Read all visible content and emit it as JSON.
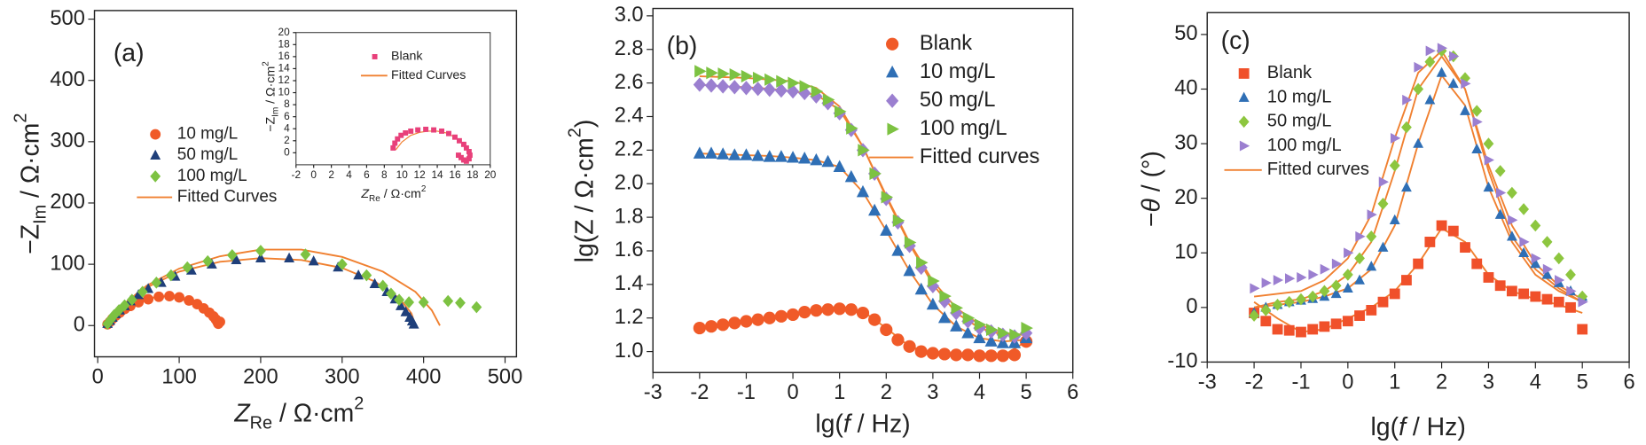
{
  "chart_data": [
    {
      "type": "scatter",
      "title": "(a)",
      "xlabel": [
        "Z",
        "Re",
        " / Ω·cm",
        "2"
      ],
      "ylabel": [
        "−Z",
        "Im",
        " / Ω·cm",
        "2"
      ],
      "xlim": [
        -4,
        514
      ],
      "ylim": [
        -51,
        514
      ],
      "xticks": [
        0,
        100,
        200,
        300,
        400,
        500
      ],
      "yticks": [
        0,
        100,
        200,
        300,
        400,
        500
      ],
      "series": [
        {
          "name": "10 mg/L",
          "color": "#f05a28",
          "marker": "circle",
          "x": [
            12,
            15,
            18,
            22,
            27,
            33,
            40,
            50,
            62,
            75,
            88,
            100,
            112,
            122,
            130,
            137,
            142,
            145,
            147,
            148,
            150
          ],
          "values": [
            2,
            6,
            11,
            16,
            21,
            27,
            32,
            38,
            43,
            47,
            48,
            46,
            41,
            35,
            28,
            21,
            15,
            10,
            6,
            3,
            6
          ]
        },
        {
          "name": "50 mg/L",
          "color": "#1f3f7a",
          "marker": "triangle",
          "x": [
            12,
            15,
            18,
            22,
            27,
            33,
            40,
            50,
            62,
            78,
            95,
            115,
            140,
            170,
            200,
            235,
            265,
            295,
            320,
            340,
            355,
            365,
            372,
            378,
            383,
            386,
            388
          ],
          "values": [
            3,
            8,
            13,
            19,
            25,
            32,
            40,
            50,
            60,
            70,
            80,
            90,
            100,
            107,
            110,
            110,
            105,
            95,
            82,
            68,
            55,
            43,
            32,
            22,
            13,
            7,
            2
          ]
        },
        {
          "name": "100 mg/L",
          "color": "#7dc242",
          "marker": "diamond",
          "x": [
            12,
            16,
            20,
            26,
            33,
            42,
            55,
            72,
            90,
            110,
            135,
            165,
            200,
            255,
            300,
            330,
            350,
            360,
            370,
            382,
            400,
            430,
            445,
            465
          ],
          "values": [
            3,
            10,
            17,
            25,
            33,
            42,
            55,
            70,
            82,
            95,
            105,
            115,
            122,
            116,
            100,
            82,
            65,
            52,
            42,
            38,
            38,
            40,
            37,
            30
          ]
        }
      ],
      "fits": {
        "name": "Fitted Curves",
        "color": "#f08030",
        "curves": [
          {
            "x": [
              10,
              15,
              25,
              40,
              60,
              80,
              100,
              115,
              128,
              138,
              145,
              148
            ],
            "values": [
              0,
              10,
              22,
              34,
              44,
              48,
              45,
              37,
              27,
              16,
              7,
              0
            ]
          },
          {
            "x": [
              10,
              30,
              60,
              100,
              150,
              200,
              250,
              300,
              340,
              370,
              385,
              390
            ],
            "values": [
              0,
              32,
              62,
              88,
              104,
              110,
              107,
              94,
              72,
              45,
              20,
              0
            ]
          },
          {
            "x": [
              10,
              30,
              60,
              100,
              150,
              200,
              250,
              300,
              350,
              390,
              410,
              420
            ],
            "values": [
              0,
              33,
              65,
              93,
              113,
              124,
              124,
              112,
              88,
              55,
              25,
              0
            ]
          }
        ]
      }
    },
    {
      "type": "scatter",
      "xlabel": [
        "Z",
        "Re",
        " / Ω·cm",
        "2"
      ],
      "ylabel": [
        "−Z",
        "Im",
        " / Ω·cm",
        "2"
      ],
      "xlim": [
        -2,
        20
      ],
      "ylim": [
        -2,
        20
      ],
      "xticks": [
        -2,
        0,
        2,
        4,
        6,
        8,
        10,
        12,
        14,
        16,
        18,
        20
      ],
      "yticks": [
        0,
        2,
        4,
        6,
        8,
        10,
        12,
        14,
        16,
        18,
        20
      ],
      "series": [
        {
          "name": "Blank",
          "color": "#e8407a",
          "marker": "square",
          "x": [
            9.0,
            9.2,
            9.5,
            9.9,
            10.4,
            11.0,
            11.8,
            12.7,
            13.6,
            14.5,
            15.3,
            16.0,
            16.5,
            17.0,
            17.3,
            17.6,
            17.7,
            17.6,
            17.3,
            17.0,
            16.7,
            16.4
          ],
          "values": [
            0.8,
            1.6,
            2.3,
            2.9,
            3.3,
            3.6,
            3.8,
            3.9,
            3.8,
            3.6,
            3.2,
            2.6,
            2.0,
            1.4,
            0.8,
            0.2,
            -0.4,
            -1.0,
            -1.4,
            -1.2,
            -0.8,
            -0.4
          ]
        }
      ],
      "fits": {
        "name": "Fitted Curves",
        "color": "#f08030",
        "curves": [
          {
            "x": [
              9.3,
              10,
              11,
              12,
              13,
              14,
              15,
              16,
              16.8,
              17.4,
              17.7
            ],
            "values": [
              0.5,
              1.8,
              2.9,
              3.4,
              3.6,
              3.6,
              3.3,
              2.6,
              1.6,
              0.5,
              -0.5
            ]
          }
        ]
      }
    },
    {
      "type": "scatter",
      "title": "(b)",
      "xlabel": [
        "lg(",
        "f",
        " / Hz)"
      ],
      "ylabel": [
        "lg(Z / Ω·cm",
        "2",
        ")"
      ],
      "xlim": [
        -3,
        6
      ],
      "ylim": [
        0.875,
        3.044
      ],
      "xticks": [
        -3,
        -2,
        -1,
        0,
        1,
        2,
        3,
        4,
        5,
        6
      ],
      "yticks": [
        {
          "value": 1.0,
          "label": "1.0"
        },
        {
          "value": 1.2,
          "label": "1.2"
        },
        {
          "value": 1.4,
          "label": "1.4"
        },
        {
          "value": 1.6,
          "label": "1.6"
        },
        {
          "value": 1.8,
          "label": "1.8"
        },
        {
          "value": 2.0,
          "label": "2.0"
        },
        {
          "value": 2.2,
          "label": "2.2"
        },
        {
          "value": 2.4,
          "label": "2.4"
        },
        {
          "value": 2.6,
          "label": "2.6"
        },
        {
          "value": 2.8,
          "label": "2.8"
        },
        {
          "value": 3.0,
          "label": "3.0"
        }
      ],
      "x": [
        -2,
        -1.75,
        -1.5,
        -1.25,
        -1,
        -0.75,
        -0.5,
        -0.25,
        0,
        0.25,
        0.5,
        0.75,
        1,
        1.25,
        1.5,
        1.75,
        2,
        2.25,
        2.5,
        2.75,
        3,
        3.25,
        3.5,
        3.75,
        4,
        4.25,
        4.5,
        4.75,
        5
      ],
      "series": [
        {
          "name": "Blank",
          "color": "#f05a28",
          "marker": "circle",
          "values": [
            1.14,
            1.15,
            1.16,
            1.17,
            1.18,
            1.19,
            1.2,
            1.21,
            1.22,
            1.235,
            1.245,
            1.25,
            1.255,
            1.25,
            1.23,
            1.19,
            1.13,
            1.07,
            1.03,
            1.0,
            0.99,
            0.985,
            0.98,
            0.98,
            0.975,
            0.975,
            0.975,
            0.98,
            1.06
          ]
        },
        {
          "name": "10 mg/L",
          "color": "#2f6fb5",
          "marker": "triangle",
          "values": [
            2.18,
            2.18,
            2.175,
            2.17,
            2.17,
            2.165,
            2.16,
            2.16,
            2.155,
            2.15,
            2.14,
            2.13,
            2.1,
            2.04,
            1.95,
            1.84,
            1.72,
            1.6,
            1.48,
            1.37,
            1.28,
            1.2,
            1.15,
            1.11,
            1.08,
            1.06,
            1.05,
            1.05,
            1.08
          ]
        },
        {
          "name": "50 mg/L",
          "color": "#9b7fd0",
          "marker": "diamond",
          "values": [
            2.59,
            2.585,
            2.58,
            2.575,
            2.57,
            2.565,
            2.56,
            2.555,
            2.55,
            2.54,
            2.52,
            2.48,
            2.42,
            2.32,
            2.2,
            2.06,
            1.91,
            1.77,
            1.63,
            1.5,
            1.39,
            1.3,
            1.23,
            1.18,
            1.14,
            1.12,
            1.1,
            1.09,
            1.11
          ]
        },
        {
          "name": "100 mg/L",
          "color": "#7dc242",
          "marker": "tri-right",
          "values": [
            2.67,
            2.66,
            2.655,
            2.65,
            2.64,
            2.63,
            2.62,
            2.61,
            2.6,
            2.58,
            2.55,
            2.5,
            2.43,
            2.33,
            2.2,
            2.06,
            1.92,
            1.78,
            1.65,
            1.53,
            1.42,
            1.33,
            1.26,
            1.2,
            1.16,
            1.13,
            1.11,
            1.1,
            1.14
          ]
        }
      ],
      "fit_x": [
        -2,
        -1.5,
        -1,
        -0.5,
        0,
        0.5,
        1,
        1.5,
        2,
        2.5,
        3,
        3.5,
        4,
        4.5,
        5
      ],
      "fits": {
        "name": "Fitted curves",
        "color": "#f08030",
        "curves": [
          {
            "values": [
              1.14,
              1.16,
              1.18,
              1.2,
              1.22,
              1.24,
              1.255,
              1.24,
              1.14,
              1.03,
              0.99,
              0.98,
              0.975,
              0.975,
              1.06
            ]
          },
          {
            "values": [
              2.18,
              2.175,
              2.17,
              2.165,
              2.155,
              2.14,
              2.1,
              1.95,
              1.72,
              1.48,
              1.28,
              1.15,
              1.08,
              1.06,
              1.07
            ]
          },
          {
            "values": [
              2.59,
              2.58,
              2.575,
              2.565,
              2.55,
              2.53,
              2.44,
              2.22,
              1.92,
              1.64,
              1.4,
              1.23,
              1.14,
              1.1,
              1.1
            ]
          },
          {
            "values": [
              2.64,
              2.635,
              2.63,
              2.62,
              2.61,
              2.57,
              2.46,
              2.22,
              1.93,
              1.65,
              1.42,
              1.26,
              1.16,
              1.11,
              1.1
            ]
          }
        ]
      }
    },
    {
      "type": "scatter",
      "title": "(c)",
      "xlabel": [
        "lg(",
        "f",
        " / Hz)"
      ],
      "ylabel": [
        "−",
        "θ",
        " / (°)"
      ],
      "xlim": [
        -3,
        6
      ],
      "ylim": [
        -10,
        54
      ],
      "xticks": [
        -3,
        -2,
        -1,
        0,
        1,
        2,
        3,
        4,
        5,
        6
      ],
      "yticks": [
        -10,
        0,
        10,
        20,
        30,
        40,
        50
      ],
      "x": [
        -2,
        -1.75,
        -1.5,
        -1.25,
        -1,
        -0.75,
        -0.5,
        -0.25,
        0,
        0.25,
        0.5,
        0.75,
        1,
        1.25,
        1.5,
        1.75,
        2,
        2.25,
        2.5,
        2.75,
        3,
        3.25,
        3.5,
        3.75,
        4,
        4.25,
        4.5,
        4.75,
        5
      ],
      "series": [
        {
          "name": "Blank",
          "color": "#f0502a",
          "marker": "square",
          "values": [
            -1,
            -2.5,
            -4,
            -4.2,
            -4.5,
            -4,
            -3.5,
            -3,
            -2.5,
            -1.5,
            -0.5,
            1,
            2.5,
            5,
            8,
            12,
            15,
            14,
            11,
            8,
            5.5,
            4,
            3,
            2.5,
            2,
            1.5,
            1,
            0,
            -4
          ]
        },
        {
          "name": "10 mg/L",
          "color": "#2f6fb5",
          "marker": "triangle",
          "values": [
            -1,
            0,
            0.5,
            1,
            1.3,
            1.6,
            2,
            2.5,
            3.5,
            5,
            7.5,
            11,
            16,
            22,
            30,
            38,
            43,
            41,
            36,
            29,
            22,
            17,
            13,
            10,
            8,
            6,
            4.5,
            3,
            2
          ]
        },
        {
          "name": "50 mg/L",
          "color": "#8dc63f",
          "marker": "diamond",
          "values": [
            -1.5,
            -0.5,
            0.5,
            1,
            1.5,
            2,
            3,
            4,
            6,
            9,
            13,
            19,
            26,
            33,
            40,
            45,
            47,
            46,
            42,
            36,
            30,
            25,
            21,
            18,
            15,
            12,
            9,
            6,
            2
          ]
        },
        {
          "name": "100 mg/L",
          "color": "#9b7fd0",
          "marker": "tri-right",
          "values": [
            3.5,
            4.5,
            5,
            5.3,
            5.5,
            6,
            7,
            8,
            10,
            13,
            17,
            23,
            31,
            38,
            44,
            47,
            47.5,
            46,
            41,
            34,
            27,
            21,
            16,
            12,
            9,
            7,
            5,
            3,
            1
          ]
        }
      ],
      "fit_x": [
        -2,
        -1.5,
        -1,
        -0.5,
        0,
        0.5,
        1,
        1.5,
        2,
        2.5,
        3,
        3.5,
        4,
        4.5,
        5
      ],
      "fits": {
        "name": "Fitted curves",
        "color": "#f08030",
        "curves": [
          {
            "values": [
              1,
              -2,
              -4.5,
              -4,
              -2,
              0,
              3,
              8,
              14.5,
              12,
              6,
              3,
              1.5,
              0.5,
              -1
            ]
          },
          {
            "values": [
              0,
              0.5,
              1,
              2,
              3.5,
              7,
              15,
              30,
              42.5,
              37,
              22,
              12,
              6,
              3,
              1
            ]
          },
          {
            "values": [
              0,
              1,
              1.5,
              3,
              6,
              12,
              25,
              40,
              46,
              40,
              26,
              15,
              8,
              4,
              1.5
            ]
          },
          {
            "values": [
              2,
              2.5,
              3,
              5,
              9,
              17,
              31,
              43,
              47,
              40,
              25,
              13,
              7,
              3.5,
              1
            ]
          }
        ]
      }
    }
  ]
}
